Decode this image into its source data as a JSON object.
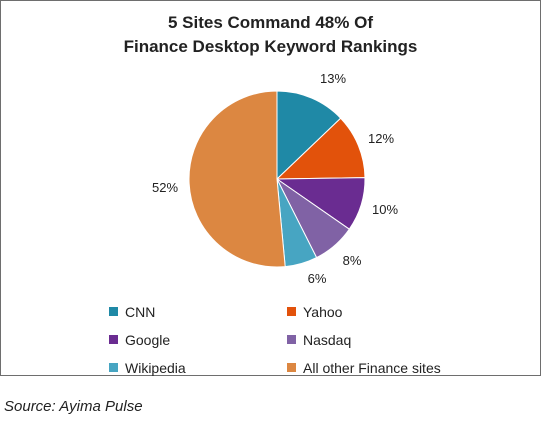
{
  "chart_data": {
    "type": "pie",
    "title": [
      "5 Sites Command 48% Of",
      "Finance Desktop Keyword Rankings"
    ],
    "slices": [
      {
        "name": "CNN",
        "value": 13,
        "label": "13%",
        "color": "#1f89a6"
      },
      {
        "name": "Yahoo",
        "value": 12,
        "label": "12%",
        "color": "#e2520b"
      },
      {
        "name": "Google",
        "value": 10,
        "label": "10%",
        "color": "#6a2c91"
      },
      {
        "name": "Nasdaq",
        "value": 8,
        "label": "8%",
        "color": "#8062a5"
      },
      {
        "name": "Wikipedia",
        "value": 6,
        "label": "6%",
        "color": "#47a5c2"
      },
      {
        "name": "All other Finance sites",
        "value": 52,
        "label": "52%",
        "color": "#dc8741"
      }
    ],
    "legend_position": "bottom"
  },
  "source": "Source: Ayima Pulse"
}
